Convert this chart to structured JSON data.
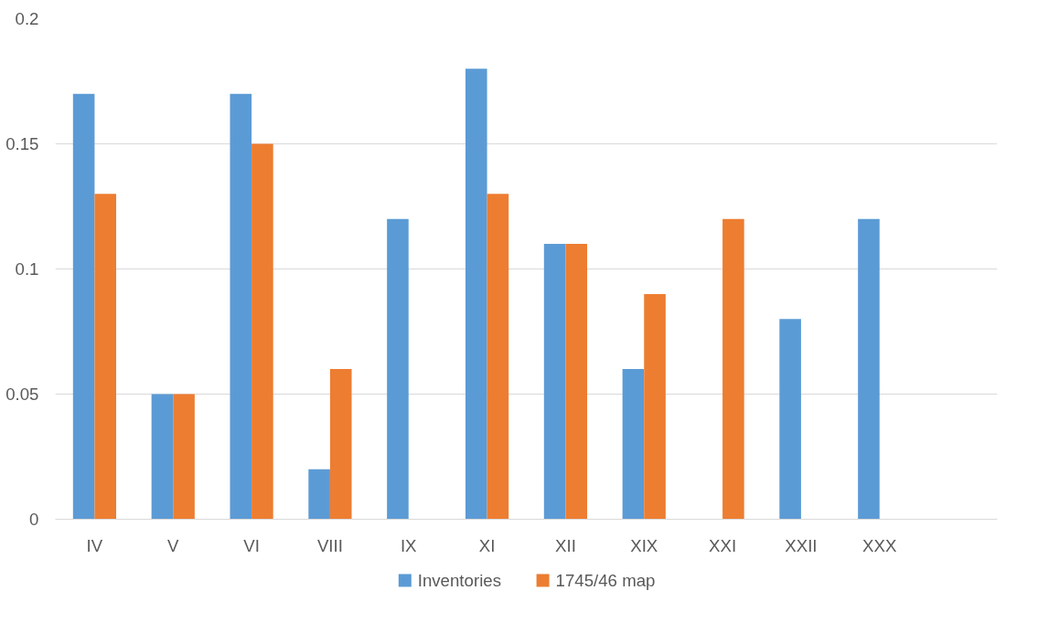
{
  "chart_data": {
    "type": "bar",
    "categories": [
      "IV",
      "V",
      "VI",
      "VIII",
      "IX",
      "XI",
      "XII",
      "XIX",
      "XXI",
      "XXII",
      "XXX",
      null
    ],
    "series": [
      {
        "name": "Inventories",
        "color": "#5b9bd5",
        "values": [
          0.17,
          0.05,
          0.17,
          0.02,
          0.12,
          0.18,
          0.11,
          0.06,
          null,
          0.08,
          0.12,
          null
        ]
      },
      {
        "name": "1745/46 map",
        "color": "#ed7d31",
        "values": [
          0.13,
          0.05,
          0.15,
          0.06,
          null,
          0.13,
          0.11,
          0.09,
          0.12,
          null,
          null,
          null
        ]
      }
    ],
    "ylim": [
      0,
      0.2
    ],
    "yticks": [
      0,
      0.05,
      0.1,
      0.15,
      0.2
    ],
    "grid": "y",
    "legend": "bottom"
  }
}
